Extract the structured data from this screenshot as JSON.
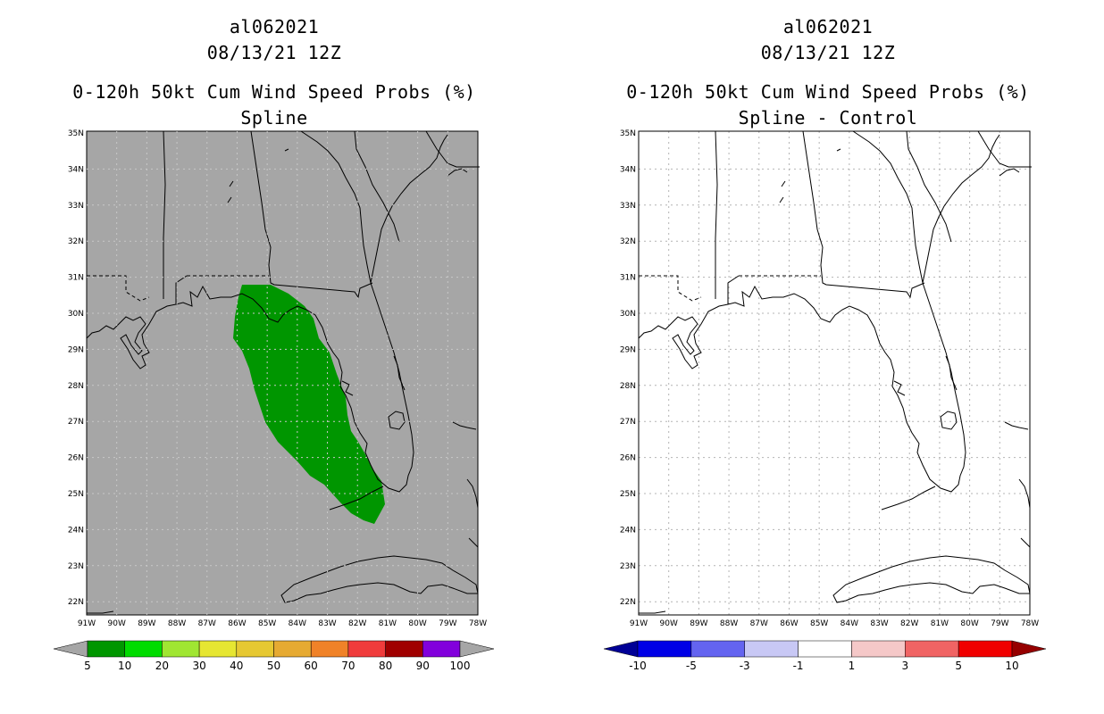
{
  "left_panel": {
    "storm_id": "al062021",
    "datetime": "08/13/21 12Z",
    "product": "0-120h 50kt Cum Wind Speed Probs (%)",
    "subtitle": "Spline",
    "background_color": "#a6a6a6",
    "swath_color": "#009600"
  },
  "right_panel": {
    "storm_id": "al062021",
    "datetime": "08/13/21 12Z",
    "product": "0-120h 50kt Cum Wind Speed Probs (%)",
    "subtitle": "Spline - Control",
    "background_color": "#ffffff"
  },
  "lat_labels": [
    "35N",
    "34N",
    "33N",
    "32N",
    "31N",
    "30N",
    "29N",
    "28N",
    "27N",
    "26N",
    "25N",
    "24N",
    "23N",
    "22N"
  ],
  "lon_labels": [
    "91W",
    "90W",
    "89W",
    "88W",
    "87W",
    "86W",
    "85W",
    "84W",
    "83W",
    "82W",
    "81W",
    "80W",
    "79W",
    "78W"
  ],
  "left_colorbar": {
    "colors": [
      "#009600",
      "#00dc00",
      "#a0e632",
      "#e6e632",
      "#e6c832",
      "#e6aa32",
      "#f08228",
      "#f03c3c",
      "#a00000",
      "#8200dc"
    ],
    "labels": [
      "5",
      "10",
      "20",
      "30",
      "40",
      "50",
      "60",
      "70",
      "80",
      "90",
      "100"
    ],
    "under_color": "#a6a6a6",
    "over_color": "#a6a6a6"
  },
  "right_colorbar": {
    "colors": [
      "#0000e6",
      "#6464f0",
      "#c8c8f5",
      "#ffffff",
      "#f5c8c8",
      "#f06464",
      "#f00000"
    ],
    "labels": [
      "-10",
      "-5",
      "-3",
      "-1",
      "1",
      "3",
      "5",
      "10"
    ],
    "under_color": "#000096",
    "over_color": "#960000"
  }
}
